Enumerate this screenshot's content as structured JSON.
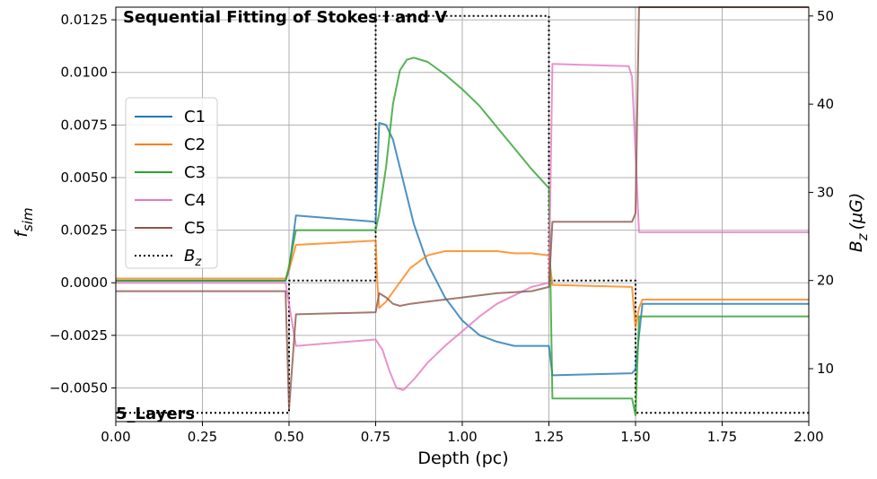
{
  "chart_data": {
    "type": "line",
    "title": "Sequential Fitting of Stokes I and V",
    "annotation": "5_Layers",
    "xlabel": "Depth (pc)",
    "ylabel": "f_sim",
    "ylabel_main": "f",
    "ylabel_sub": "sim",
    "y2label": "B_z (μG)",
    "y2label_main": "B",
    "y2label_sub": "z",
    "y2label_unit": "(μG)",
    "xlim": [
      0.0,
      2.0
    ],
    "ylim": [
      -0.0066,
      0.0131
    ],
    "y2lim": [
      4.0,
      51.0
    ],
    "grid": true,
    "legend_position": "upper-left",
    "x_ticks": [
      {
        "value": 0.0,
        "label": "0.00"
      },
      {
        "value": 0.25,
        "label": "0.25"
      },
      {
        "value": 0.5,
        "label": "0.50"
      },
      {
        "value": 0.75,
        "label": "0.75"
      },
      {
        "value": 1.0,
        "label": "1.00"
      },
      {
        "value": 1.25,
        "label": "1.25"
      },
      {
        "value": 1.5,
        "label": "1.50"
      },
      {
        "value": 1.75,
        "label": "1.75"
      },
      {
        "value": 2.0,
        "label": "2.00"
      }
    ],
    "y_ticks": [
      {
        "value": -0.005,
        "label": "−0.0050"
      },
      {
        "value": -0.0025,
        "label": "−0.0025"
      },
      {
        "value": 0.0,
        "label": "0.0000"
      },
      {
        "value": 0.0025,
        "label": "0.0025"
      },
      {
        "value": 0.005,
        "label": "0.0050"
      },
      {
        "value": 0.0075,
        "label": "0.0075"
      },
      {
        "value": 0.01,
        "label": "0.0100"
      },
      {
        "value": 0.0125,
        "label": "0.0125"
      }
    ],
    "y2_ticks": [
      {
        "value": 10,
        "label": "10"
      },
      {
        "value": 20,
        "label": "20"
      },
      {
        "value": 30,
        "label": "30"
      },
      {
        "value": 40,
        "label": "40"
      },
      {
        "value": 50,
        "label": "50"
      }
    ],
    "series": [
      {
        "name": "C1",
        "color": "#1f77b4",
        "axis": "left",
        "points": [
          [
            0.0,
            0.0001
          ],
          [
            0.49,
            0.0001
          ],
          [
            0.5,
            0.0006
          ],
          [
            0.52,
            0.0032
          ],
          [
            0.75,
            0.0029
          ],
          [
            0.76,
            0.0076
          ],
          [
            0.78,
            0.0075
          ],
          [
            0.8,
            0.0068
          ],
          [
            0.83,
            0.0048
          ],
          [
            0.86,
            0.0028
          ],
          [
            0.9,
            0.0009
          ],
          [
            0.95,
            -0.0007
          ],
          [
            1.0,
            -0.0018
          ],
          [
            1.05,
            -0.0025
          ],
          [
            1.1,
            -0.0028
          ],
          [
            1.15,
            -0.003
          ],
          [
            1.2,
            -0.003
          ],
          [
            1.25,
            -0.003
          ],
          [
            1.26,
            -0.0044
          ],
          [
            1.49,
            -0.0043
          ],
          [
            1.5,
            -0.0041
          ],
          [
            1.51,
            -0.0025
          ],
          [
            1.52,
            -0.001
          ],
          [
            2.0,
            -0.001
          ]
        ]
      },
      {
        "name": "C2",
        "color": "#ff7f0e",
        "axis": "left",
        "points": [
          [
            0.0,
            0.0002
          ],
          [
            0.49,
            0.0002
          ],
          [
            0.5,
            0.0006
          ],
          [
            0.52,
            0.0018
          ],
          [
            0.75,
            0.002
          ],
          [
            0.755,
            0.0
          ],
          [
            0.76,
            -0.0012
          ],
          [
            0.78,
            -0.0009
          ],
          [
            0.81,
            -0.0002
          ],
          [
            0.85,
            0.0007
          ],
          [
            0.9,
            0.0013
          ],
          [
            0.95,
            0.0015
          ],
          [
            1.0,
            0.0015
          ],
          [
            1.05,
            0.0015
          ],
          [
            1.1,
            0.0015
          ],
          [
            1.15,
            0.0014
          ],
          [
            1.2,
            0.0014
          ],
          [
            1.25,
            0.0013
          ],
          [
            1.26,
            -0.0001
          ],
          [
            1.49,
            -0.0002
          ],
          [
            1.5,
            -0.0021
          ],
          [
            1.51,
            -0.0012
          ],
          [
            1.52,
            -0.0008
          ],
          [
            2.0,
            -0.0008
          ]
        ]
      },
      {
        "name": "C3",
        "color": "#2ca02c",
        "axis": "left",
        "points": [
          [
            0.0,
            0.0001
          ],
          [
            0.49,
            0.0001
          ],
          [
            0.5,
            0.0008
          ],
          [
            0.52,
            0.0025
          ],
          [
            0.75,
            0.0025
          ],
          [
            0.76,
            0.0033
          ],
          [
            0.78,
            0.0055
          ],
          [
            0.8,
            0.0085
          ],
          [
            0.82,
            0.0101
          ],
          [
            0.84,
            0.0106
          ],
          [
            0.86,
            0.0107
          ],
          [
            0.9,
            0.0105
          ],
          [
            0.95,
            0.0099
          ],
          [
            1.0,
            0.0092
          ],
          [
            1.05,
            0.0084
          ],
          [
            1.1,
            0.0074
          ],
          [
            1.15,
            0.0064
          ],
          [
            1.2,
            0.0054
          ],
          [
            1.25,
            0.0045
          ],
          [
            1.26,
            -0.0055
          ],
          [
            1.49,
            -0.0055
          ],
          [
            1.5,
            -0.0063
          ],
          [
            1.51,
            -0.0016
          ],
          [
            1.52,
            -0.0016
          ],
          [
            2.0,
            -0.0016
          ]
        ]
      },
      {
        "name": "C4",
        "color": "#e377c2",
        "axis": "left",
        "points": [
          [
            0.0,
            0.0
          ],
          [
            0.49,
            0.0
          ],
          [
            0.5,
            -0.001
          ],
          [
            0.52,
            -0.003
          ],
          [
            0.75,
            -0.0027
          ],
          [
            0.77,
            -0.0032
          ],
          [
            0.79,
            -0.0042
          ],
          [
            0.81,
            -0.005
          ],
          [
            0.83,
            -0.0051
          ],
          [
            0.86,
            -0.0046
          ],
          [
            0.9,
            -0.0038
          ],
          [
            0.95,
            -0.003
          ],
          [
            1.0,
            -0.0023
          ],
          [
            1.05,
            -0.0016
          ],
          [
            1.1,
            -0.001
          ],
          [
            1.15,
            -0.0006
          ],
          [
            1.2,
            -0.0002
          ],
          [
            1.25,
            0.0
          ],
          [
            1.26,
            0.0104
          ],
          [
            1.48,
            0.0103
          ],
          [
            1.49,
            0.0098
          ],
          [
            1.51,
            0.0024
          ],
          [
            1.52,
            0.0024
          ],
          [
            2.0,
            0.0024
          ]
        ]
      },
      {
        "name": "C5",
        "color": "#8c564b",
        "axis": "left",
        "points": [
          [
            0.0,
            -0.0004
          ],
          [
            0.49,
            -0.0004
          ],
          [
            0.5,
            -0.006
          ],
          [
            0.52,
            -0.0015
          ],
          [
            0.75,
            -0.0014
          ],
          [
            0.76,
            -0.0005
          ],
          [
            0.78,
            -0.0007
          ],
          [
            0.8,
            -0.001
          ],
          [
            0.82,
            -0.0011
          ],
          [
            0.85,
            -0.001
          ],
          [
            0.9,
            -0.0009
          ],
          [
            1.0,
            -0.0007
          ],
          [
            1.1,
            -0.0005
          ],
          [
            1.2,
            -0.0004
          ],
          [
            1.25,
            -0.0002
          ],
          [
            1.26,
            0.0029
          ],
          [
            1.49,
            0.0029
          ],
          [
            1.5,
            0.0033
          ],
          [
            1.51,
            0.0131
          ],
          [
            2.0,
            0.0131
          ]
        ]
      },
      {
        "name": "B_z",
        "label_main": "B",
        "label_sub": "z",
        "color": "#000000",
        "axis": "right",
        "style": "dotted",
        "points": [
          [
            0.0,
            5
          ],
          [
            0.5,
            5
          ],
          [
            0.5,
            20
          ],
          [
            0.75,
            20
          ],
          [
            0.75,
            50
          ],
          [
            1.25,
            50
          ],
          [
            1.25,
            20
          ],
          [
            1.5,
            20
          ],
          [
            1.5,
            5
          ],
          [
            2.0,
            5
          ]
        ]
      }
    ]
  }
}
